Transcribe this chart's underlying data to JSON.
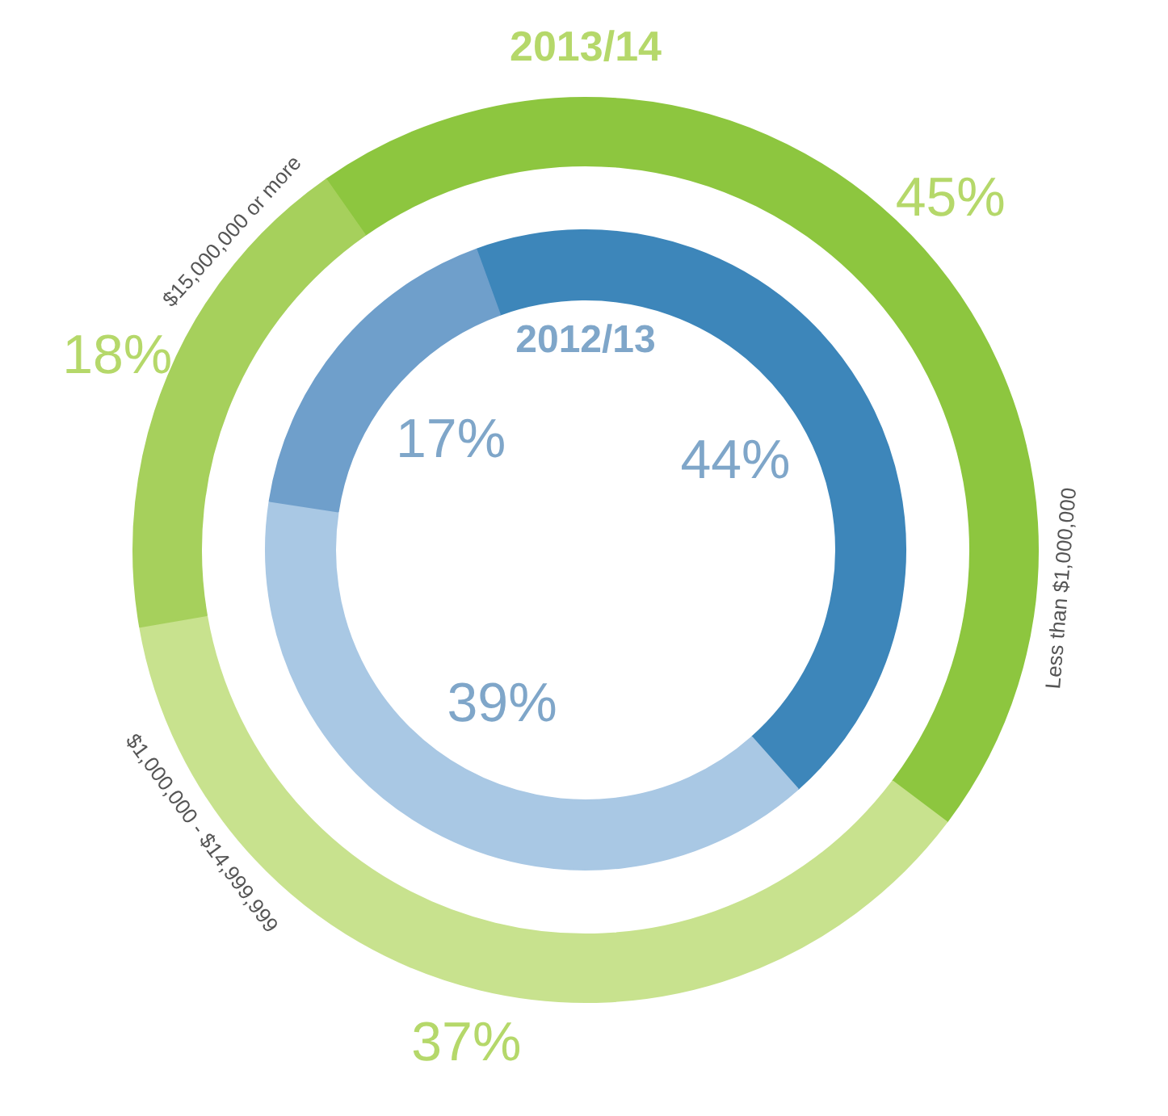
{
  "chart_data": {
    "type": "donut",
    "categories": [
      "Less than $1,000,000",
      "$1,000,000 - $14,999,999",
      "$15,000,000 or more"
    ],
    "series": [
      {
        "name": "2013/14",
        "values": [
          45,
          37,
          18
        ],
        "colors": [
          "#8dc63f",
          "#c8e28e",
          "#a6d05c"
        ],
        "value_labels": [
          "45%",
          "37%",
          "18%"
        ]
      },
      {
        "name": "2012/13",
        "values": [
          44,
          39,
          17
        ],
        "colors": [
          "#3d86ba",
          "#a9c8e4",
          "#6f9fcb"
        ],
        "value_labels": [
          "44%",
          "39%",
          "17%"
        ]
      }
    ]
  }
}
